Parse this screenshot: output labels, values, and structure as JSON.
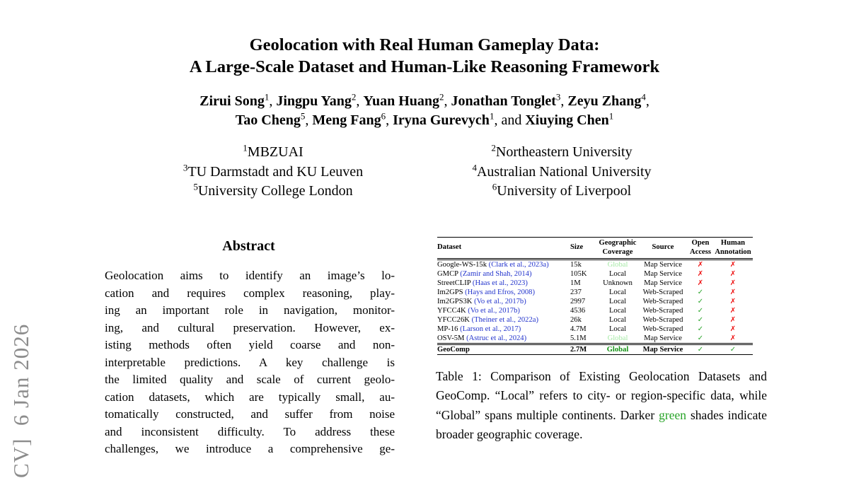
{
  "watermark": {
    "text": "CV]  6 Jan 2026"
  },
  "title": {
    "line1": "Geolocation with Real Human Gameplay Data:",
    "line2": "A Large-Scale Dataset and Human-Like Reasoning Framework"
  },
  "authors": {
    "line1": [
      {
        "name": "Zirui Song",
        "sup": "1",
        "suffix": ", "
      },
      {
        "name": "Jingpu Yang",
        "sup": "2",
        "suffix": ", "
      },
      {
        "name": "Yuan Huang",
        "sup": "2",
        "suffix": ", "
      },
      {
        "name": "Jonathan Tonglet",
        "sup": "3",
        "suffix": ", "
      },
      {
        "name": "Zeyu Zhang",
        "sup": "4",
        "suffix": ","
      }
    ],
    "line2": [
      {
        "name": "Tao Cheng",
        "sup": "5",
        "suffix": ", "
      },
      {
        "name": "Meng Fang",
        "sup": "6",
        "suffix": ", "
      },
      {
        "name": "Iryna Gurevych",
        "sup": "1",
        "suffix": ", and "
      },
      {
        "name": "Xiuying Chen",
        "sup": "1",
        "suffix": ""
      }
    ]
  },
  "affiliations": [
    {
      "sup": "1",
      "text": "MBZUAI"
    },
    {
      "sup": "2",
      "text": "Northeastern University"
    },
    {
      "sup": "3",
      "text": "TU Darmstadt and KU Leuven"
    },
    {
      "sup": "4",
      "text": "Australian National University"
    },
    {
      "sup": "5",
      "text": "University College London"
    },
    {
      "sup": "6",
      "text": "University of Liverpool"
    }
  ],
  "abstract": {
    "heading": "Abstract",
    "lines": [
      "Geolocation aims to identify an image’s lo-",
      "cation and requires complex reasoning, play-",
      "ing an important role in navigation, monitor-",
      "ing, and cultural preservation. However, ex-",
      "isting methods often yield coarse and non-",
      "interpretable predictions. A key challenge is",
      "the limited quality and scale of current geolo-",
      "cation datasets, which are typically small, au-",
      "tomatically constructed, and suffer from noise",
      "and inconsistent difficulty. To address these",
      "challenges, we introduce a comprehensive ge-"
    ]
  },
  "table": {
    "columns": [
      {
        "lines": [
          "Dataset"
        ],
        "align": "left"
      },
      {
        "lines": [
          "Size"
        ],
        "align": "left"
      },
      {
        "lines": [
          "Geographic",
          "Coverage"
        ],
        "align": "center"
      },
      {
        "lines": [
          "Source"
        ],
        "align": "center"
      },
      {
        "lines": [
          "Open",
          "Access"
        ],
        "align": "center"
      },
      {
        "lines": [
          "Human",
          "Annotation"
        ],
        "align": "center"
      }
    ],
    "check_glyph": "✓",
    "cross_glyph": "✗",
    "rows": [
      {
        "dataset": "Google-WS-15k",
        "cite": "(Clark et al., 2023a)",
        "size": "15k",
        "coverage": "Global",
        "cov": "light",
        "source": "Map Service",
        "open": false,
        "human": false
      },
      {
        "dataset": "GMCP",
        "cite": "(Zamir and Shah, 2014)",
        "size": "105K",
        "coverage": "Local",
        "cov": "",
        "source": "Map Service",
        "open": false,
        "human": false
      },
      {
        "dataset": "StreetCLIP",
        "cite": "(Haas et al., 2023)",
        "size": "1M",
        "coverage": "Unknown",
        "cov": "",
        "source": "Map Service",
        "open": false,
        "human": false
      },
      {
        "dataset": "Im2GPS",
        "cite": "(Hays and Efros, 2008)",
        "size": "237",
        "coverage": "Local",
        "cov": "",
        "source": "Web-Scraped",
        "open": true,
        "human": false
      },
      {
        "dataset": "Im2GPS3K",
        "cite": "(Vo et al., 2017b)",
        "size": "2997",
        "coverage": "Local",
        "cov": "",
        "source": "Web-Scraped",
        "open": true,
        "human": false
      },
      {
        "dataset": "YFCC4K",
        "cite": "(Vo et al., 2017b)",
        "size": "4536",
        "coverage": "Local",
        "cov": "",
        "source": "Web-Scraped",
        "open": true,
        "human": false
      },
      {
        "dataset": "YFCC26K",
        "cite": "(Theiner et al., 2022a)",
        "size": "26k",
        "coverage": "Local",
        "cov": "",
        "source": "Web-Scraped",
        "open": true,
        "human": false
      },
      {
        "dataset": "MP-16",
        "cite": "(Larson et al., 2017)",
        "size": "4.7M",
        "coverage": "Local",
        "cov": "",
        "source": "Web-Scraped",
        "open": true,
        "human": false
      },
      {
        "dataset": "OSV-5M",
        "cite": "(Astruc et al., 2024)",
        "size": "5.1M",
        "coverage": "Global",
        "cov": "light",
        "source": "Map Service",
        "open": true,
        "human": false
      }
    ],
    "highlight_row": {
      "dataset": "GeoComp",
      "cite": "",
      "size": "2.7M",
      "coverage": "Global",
      "cov": "dark",
      "source": "Map Service",
      "open": true,
      "human": true
    }
  },
  "caption": {
    "before": "Table 1: Comparison of Existing Geolocation Datasets and GeoComp. “Local” refers to city- or region-specific data, while “Global” spans multiple continents. Darker ",
    "green_word": "green",
    "after": " shades indicate broader geographic coverage."
  },
  "colors": {
    "citation_blue": "#2233cc",
    "check_green": "#2aa52a",
    "cross_red": "#ee1111",
    "coverage_light_green": "#a6e9a6",
    "coverage_dark_green": "#129112",
    "caption_green": "#28a428",
    "watermark_gray": "#8c8c8c"
  }
}
